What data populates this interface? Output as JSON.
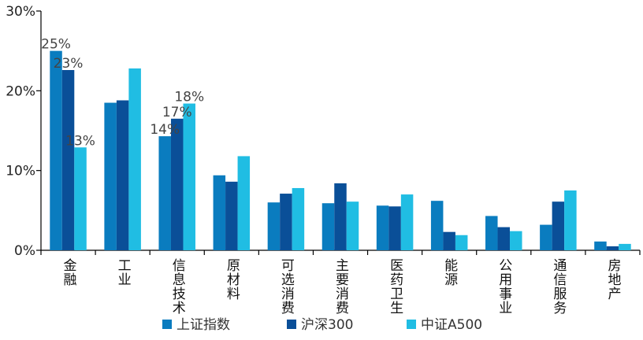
{
  "chart_data": {
    "type": "bar",
    "title": "",
    "xlabel": "",
    "ylabel": "",
    "ylim": [
      0,
      30
    ],
    "y_ticks": [
      "0%",
      "10%",
      "20%",
      "30%"
    ],
    "y_tick_values": [
      0,
      10,
      20,
      30
    ],
    "grid": false,
    "legend_position": "bottom",
    "categories": [
      "金融",
      "工业",
      "信息技术",
      "原材料",
      "可选消费",
      "主要消费",
      "医药卫生",
      "能源",
      "公用事业",
      "通信服务",
      "房地产"
    ],
    "series": [
      {
        "name": "上证指数",
        "color": "#0a7cbf",
        "values": [
          25.0,
          18.5,
          14.3,
          9.4,
          6.0,
          5.9,
          5.6,
          6.2,
          4.3,
          3.2,
          1.1
        ]
      },
      {
        "name": "沪深300",
        "color": "#0a4f98",
        "values": [
          22.6,
          18.8,
          16.5,
          8.6,
          7.1,
          8.4,
          5.5,
          2.3,
          2.9,
          6.1,
          0.5
        ]
      },
      {
        "name": "中证A500",
        "color": "#20bde3",
        "values": [
          12.9,
          22.8,
          18.4,
          11.8,
          7.8,
          6.1,
          7.0,
          1.9,
          2.4,
          7.5,
          0.8
        ]
      }
    ],
    "data_labels": [
      {
        "series": 0,
        "category": 0,
        "text": "25%"
      },
      {
        "series": 1,
        "category": 0,
        "text": "23%"
      },
      {
        "series": 2,
        "category": 0,
        "text": "13%"
      },
      {
        "series": 0,
        "category": 2,
        "text": "14%"
      },
      {
        "series": 1,
        "category": 2,
        "text": "17%"
      },
      {
        "series": 2,
        "category": 2,
        "text": "18%"
      }
    ]
  }
}
